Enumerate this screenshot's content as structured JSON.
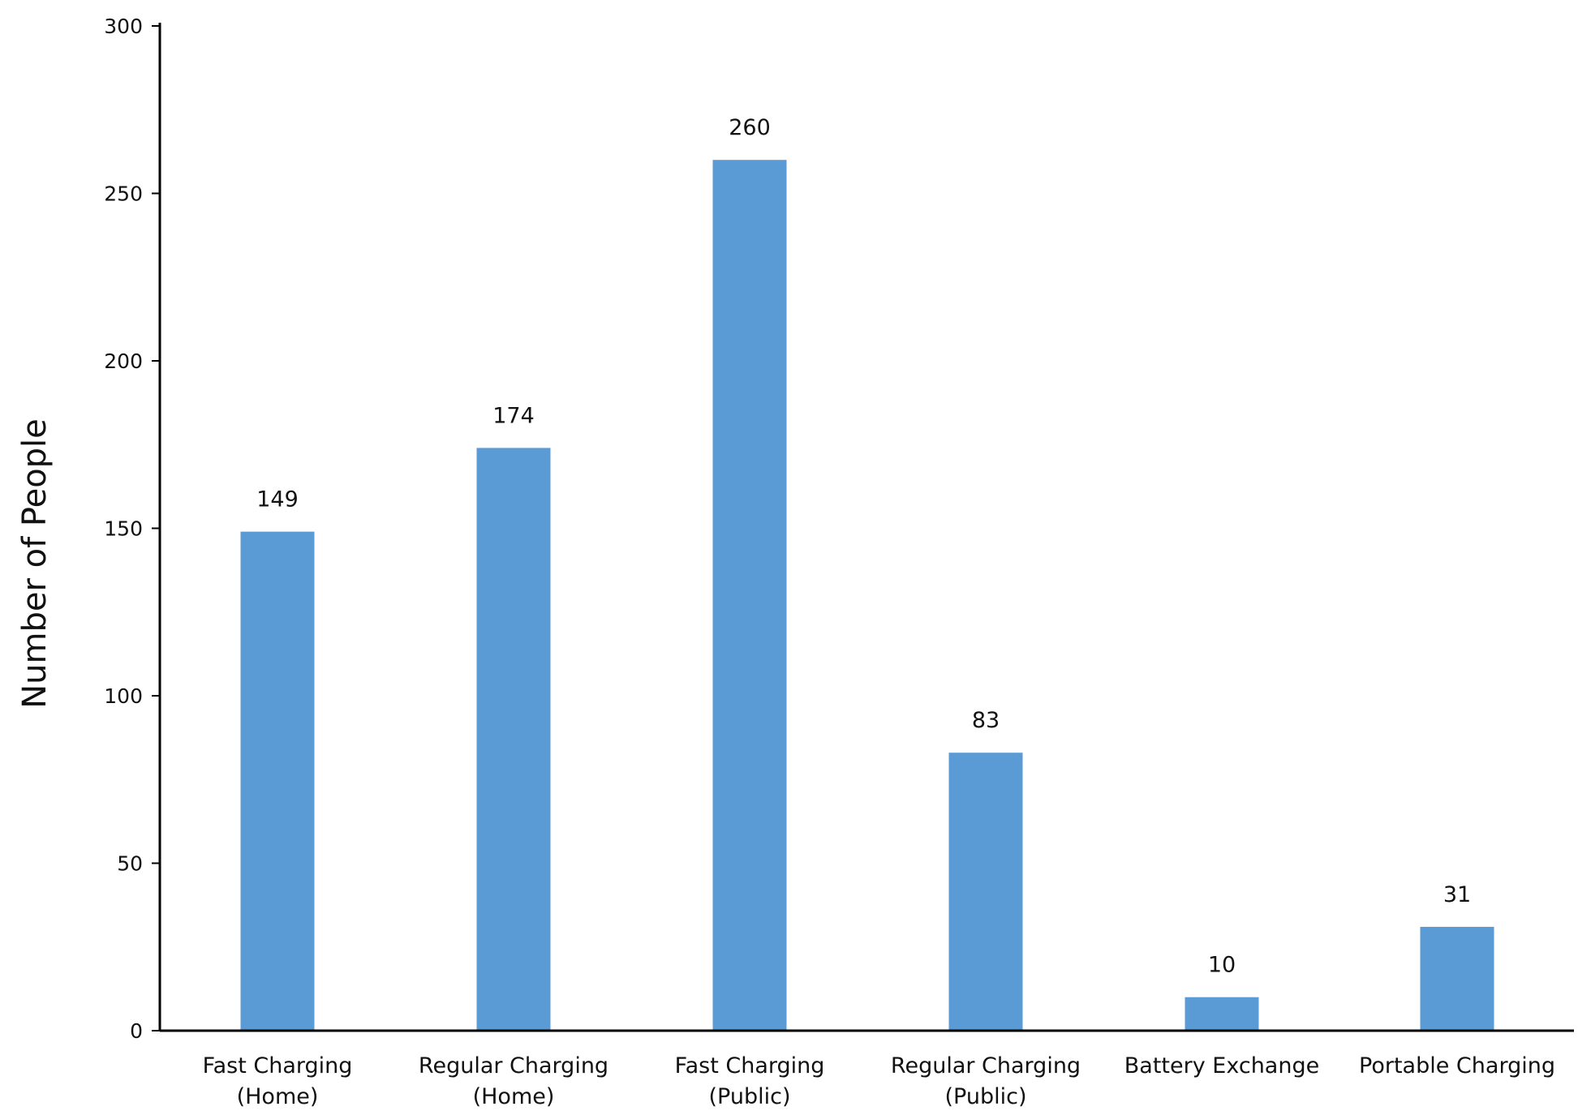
{
  "chart_data": {
    "type": "bar",
    "title": "",
    "xlabel": "",
    "ylabel": "Number of People",
    "ylim": [
      0,
      300
    ],
    "yticks": [
      0,
      50,
      100,
      150,
      200,
      250,
      300
    ],
    "grid": false,
    "bar_color": "#5b9bd5",
    "axis_color": "#000000",
    "categories": [
      [
        "Fast Charging",
        "(Home)"
      ],
      [
        "Regular Charging",
        "(Home)"
      ],
      [
        "Fast Charging",
        "(Public)"
      ],
      [
        "Regular Charging",
        "(Public)"
      ],
      [
        "Battery Exchange"
      ],
      [
        "Portable Charging"
      ]
    ],
    "values": [
      149,
      174,
      260,
      83,
      10,
      31
    ],
    "data_labels": [
      "149",
      "174",
      "260",
      "83",
      "10",
      "31"
    ]
  }
}
